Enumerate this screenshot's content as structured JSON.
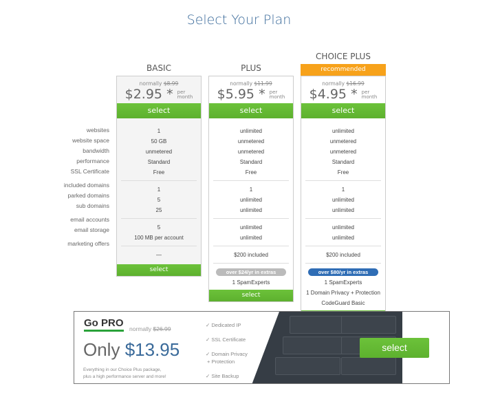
{
  "title": "Select Your Plan",
  "feature_labels": {
    "g1": [
      "websites",
      "website space",
      "bandwidth",
      "performance",
      "SSL Certificate"
    ],
    "g2": [
      "included domains",
      "parked domains",
      "sub domains"
    ],
    "g3": [
      "email accounts",
      "email storage"
    ],
    "g4": [
      "marketing offers"
    ]
  },
  "plans": [
    {
      "name": "BASIC",
      "normally": "normally",
      "old_price": "$8.99",
      "price": "$2.95",
      "asterisk": "*",
      "per": "per",
      "month": "month",
      "select": "select",
      "g1": [
        "1",
        "50 GB",
        "unmetered",
        "Standard",
        "Free"
      ],
      "g2": [
        "1",
        "5",
        "25"
      ],
      "g3": [
        "5",
        "100 MB per account"
      ],
      "g4": [
        "—"
      ]
    },
    {
      "name": "PLUS",
      "normally": "normally",
      "old_price": "$11.99",
      "price": "$5.95",
      "asterisk": "*",
      "per": "per",
      "month": "month",
      "select": "select",
      "g1": [
        "unlimited",
        "unmetered",
        "unmetered",
        "Standard",
        "Free"
      ],
      "g2": [
        "1",
        "unlimited",
        "unlimited"
      ],
      "g3": [
        "unlimited",
        "unlimited"
      ],
      "g4": [
        "$200 included"
      ],
      "badge": "over $24/yr in extras",
      "badge_color": "#bbbbbb",
      "extras": [
        "1 SpamExperts"
      ]
    },
    {
      "name": "CHOICE PLUS",
      "recommended": "recommended",
      "normally": "normally",
      "old_price": "$16.99",
      "price": "$4.95",
      "asterisk": "*",
      "per": "per",
      "month": "month",
      "select": "select",
      "g1": [
        "unlimited",
        "unmetered",
        "unmetered",
        "Standard",
        "Free"
      ],
      "g2": [
        "1",
        "unlimited",
        "unlimited"
      ],
      "g3": [
        "unlimited",
        "unlimited"
      ],
      "g4": [
        "$200 included"
      ],
      "badge": "over $80/yr in extras",
      "badge_color": "#2f6db5",
      "extras": [
        "1 SpamExperts",
        "1 Domain Privacy + Protection",
        "CodeGuard Basic"
      ]
    }
  ],
  "pro": {
    "title": "Go PRO",
    "normally": "normally",
    "old_price": "$26.99",
    "only": "Only",
    "price": "$13.95",
    "desc1": "Everything in our Choice Plus package,",
    "desc2": "plus a high performance server and more!",
    "features": [
      "Dedicated IP",
      "SSL Certificate",
      "Domain Privacy",
      "+ Protection",
      "Site Backup"
    ],
    "select": "select"
  },
  "colors": {
    "green": "#66bb33",
    "orange": "#f7a21b",
    "blue": "#2f6db5"
  }
}
